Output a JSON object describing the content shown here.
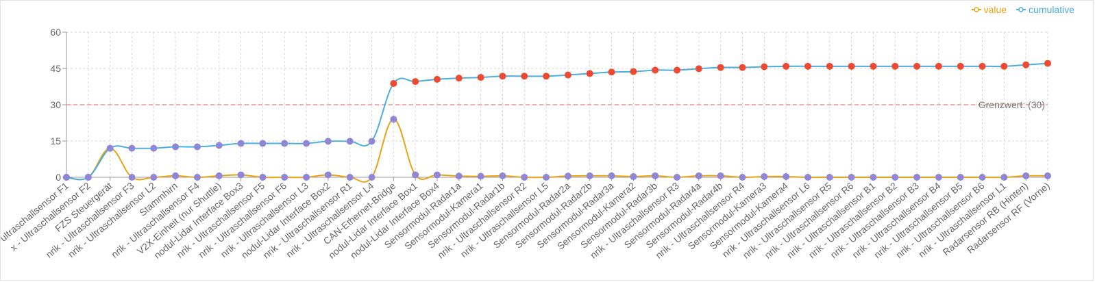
{
  "colors": {
    "value_line": "#e8a317",
    "value_marker": "#8f86d8",
    "cumulative_line": "#4aaee0",
    "cumulative_marker_low": "#8f86d8",
    "cumulative_marker_high": "#ef4a2f",
    "threshold": "#e0605a",
    "grid": "#d7d7d7",
    "axis_text": "#666666"
  },
  "chart_data": {
    "type": "line",
    "ylim": [
      0,
      60
    ],
    "yticks": [
      0,
      15,
      30,
      45,
      60
    ],
    "grid": true,
    "legend_position": "top-right",
    "categories": [
      "ultraschallsensor F1",
      "x - Ultraschallsensor F2",
      "FZS Steuergerät",
      "nrik - Ultraschallsensor F3",
      "nrik - Ultraschallsensor L2",
      "Stammhirn",
      "nrik - Ultraschallsensor F4",
      "V2X-Einheit (nur Shuttle)",
      "nodul-Lidar Interface Box3",
      "nrik - Ultraschallsensor F5",
      "nrik - Ultraschallsensor F6",
      "nrik - Ultraschallsensor L3",
      "nodul-Lidar Interface Box2",
      "nrik - Ultraschallsensor R1",
      "nrik - Ultraschallsensor L4",
      "CAN-Ethernet-Bridge",
      "nodul-Lidar Interface Box1",
      "nodul-Lidar Interface Box4",
      "Sensormodul-Radar1a",
      "Sensormodul-Kamera1",
      "Sensormodul-Radar1b",
      "nrik - Ultraschallsensor R2",
      "nrik - Ultraschallsensor L5",
      "Sensormodul-Radar2a",
      "Sensormodul-Radar2b",
      "Sensormodul-Radar3a",
      "Sensormodul-Kamera2",
      "Sensormodul-Radar3b",
      "nrik - Ultraschallsensor R3",
      "Sensormodul-Radar4a",
      "Sensormodul-Radar4b",
      "nrik - Ultraschallsensor R4",
      "Sensormodul-Kamera3",
      "Sensormodul-Kamera4",
      "nrik - Ultraschallsensor L6",
      "nrik - Ultraschallsensor R5",
      "nrik - Ultraschallsensor R6",
      "nrik - Ultraschallsensor B1",
      "nrik - Ultraschallsensor B2",
      "nrik - Ultraschallsensor B3",
      "nrik - Ultraschallsensor B4",
      "nrik - Ultraschallsensor B5",
      "nrik - Ultraschallsensor B6",
      "nrik - Ultraschallsensor L1",
      "Radarsensor RB (Hinten)",
      "Radarsensor RF (Vorne)"
    ],
    "series": [
      {
        "name": "value",
        "values": [
          0,
          0,
          12,
          0,
          0,
          0.6,
          0,
          0.6,
          1,
          0,
          0,
          0,
          1,
          0,
          0,
          24,
          1,
          1,
          0.5,
          0.4,
          0.6,
          0,
          0,
          0.5,
          0.6,
          0.6,
          0.3,
          0.6,
          0,
          0.6,
          0.6,
          0,
          0.3,
          0.3,
          0,
          0,
          0,
          0,
          0,
          0,
          0,
          0,
          0,
          0,
          0.6,
          0.6
        ]
      },
      {
        "name": "cumulative",
        "values": [
          0,
          0,
          12,
          12,
          12,
          12.6,
          12.6,
          13.2,
          14,
          14,
          14,
          14,
          14.9,
          14.9,
          14.9,
          38.8,
          39.6,
          40.5,
          41,
          41.3,
          41.8,
          41.8,
          41.8,
          42.3,
          42.9,
          43.5,
          43.7,
          44.3,
          44.3,
          44.9,
          45.4,
          45.4,
          45.7,
          45.9,
          45.9,
          45.9,
          45.9,
          45.9,
          45.9,
          45.9,
          45.9,
          45.9,
          45.9,
          45.9,
          46.5,
          47.1
        ]
      }
    ],
    "threshold": {
      "value": 30,
      "label": "Grenzwert: (30)"
    }
  }
}
